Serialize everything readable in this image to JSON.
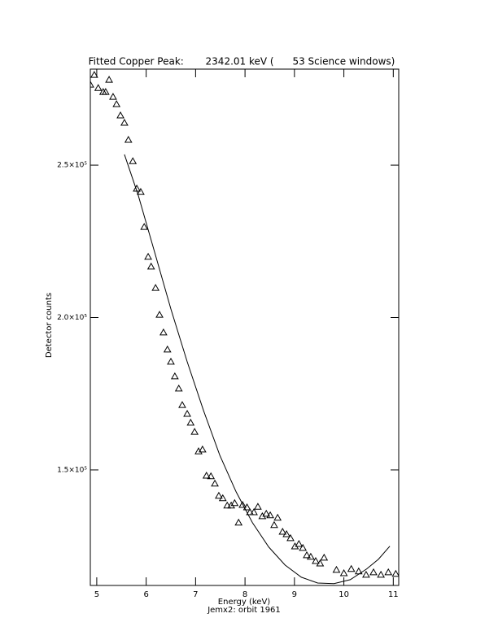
{
  "chart_data": {
    "type": "scatter",
    "title": "Fitted Copper Peak:       2342.01 keV (      53 Science windows)",
    "x_label": "Energy (keV)",
    "y_label": "Detector counts",
    "subtitle": "Jemx2: orbit 1961",
    "color": "#000000",
    "x": [
      4.87,
      4.95,
      5.03,
      5.13,
      5.18,
      5.25,
      5.33,
      5.4,
      5.48,
      5.56,
      5.64,
      5.73,
      5.81,
      5.89,
      5.96,
      6.04,
      6.1,
      6.19,
      6.27,
      6.35,
      6.43,
      6.5,
      6.58,
      6.66,
      6.73,
      6.83,
      6.9,
      6.98,
      7.06,
      7.14,
      7.22,
      7.31,
      7.39,
      7.47,
      7.55,
      7.64,
      7.72,
      7.79,
      7.87,
      7.95,
      8.04,
      8.1,
      8.18,
      8.26,
      8.35,
      8.43,
      8.51,
      8.59,
      8.66,
      8.76,
      8.84,
      8.92,
      9.01,
      9.09,
      9.17,
      9.25,
      9.33,
      9.43,
      9.52,
      9.6,
      9.85,
      10.0,
      10.15,
      10.3,
      10.45,
      10.6,
      10.75,
      10.9,
      11.05
    ],
    "y": [
      276400,
      279600,
      275300,
      274000,
      274000,
      278000,
      272400,
      270000,
      266300,
      263900,
      258300,
      251300,
      242300,
      241200,
      229700,
      219900,
      216700,
      209700,
      200900,
      195100,
      189500,
      185500,
      180700,
      176700,
      171300,
      168400,
      165500,
      162500,
      156100,
      156700,
      148100,
      147900,
      145500,
      141500,
      140700,
      138300,
      138300,
      139100,
      132700,
      138500,
      137700,
      136100,
      136100,
      137900,
      134800,
      135600,
      135100,
      131900,
      134300,
      129700,
      128900,
      127600,
      124900,
      125700,
      124400,
      122000,
      121500,
      120100,
      119300,
      121200,
      117200,
      116100,
      117500,
      116700,
      115600,
      116400,
      115600,
      116400,
      115900
    ],
    "fit": {
      "x": [
        5.56,
        5.84,
        6.17,
        6.5,
        6.83,
        7.16,
        7.49,
        7.82,
        8.15,
        8.48,
        8.81,
        9.14,
        9.47,
        9.8,
        10.13,
        10.46,
        10.7,
        10.93
      ],
      "y": [
        253500,
        240100,
        221500,
        202800,
        185500,
        169500,
        154800,
        142800,
        132700,
        124700,
        118800,
        114800,
        112900,
        112700,
        114000,
        117500,
        120700,
        125000
      ]
    },
    "xlim": [
      4.87,
      11.11
    ],
    "ylim": [
      112100,
      281500
    ],
    "xticks": [
      5,
      6,
      7,
      8,
      9,
      10,
      11
    ],
    "yticks": [
      {
        "value": 150000,
        "label": "1.5×10⁵"
      },
      {
        "value": 200000,
        "label": "2.0×10⁵"
      },
      {
        "value": 250000,
        "label": "2.5×10⁵"
      }
    ]
  }
}
